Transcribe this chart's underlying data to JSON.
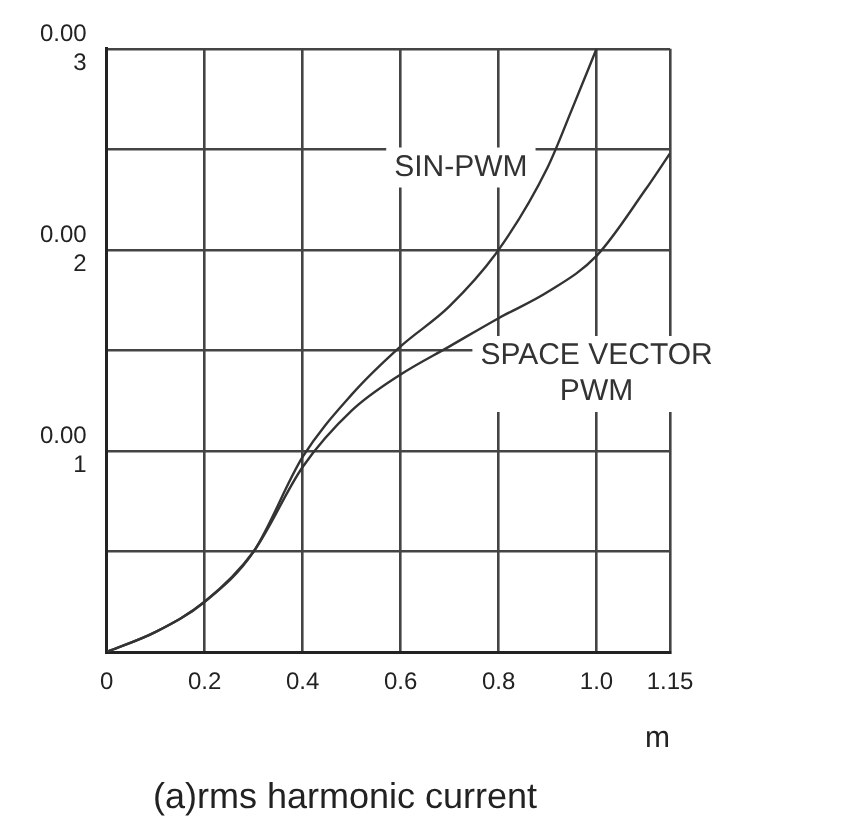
{
  "chart_data": {
    "type": "line",
    "title": "(a)rms harmonic current",
    "xlabel": "m",
    "xlim": [
      0,
      1.15
    ],
    "xticks": [
      0,
      0.2,
      0.4,
      0.6,
      0.8,
      {
        "value": 1,
        "label": "1.0"
      },
      1.15
    ],
    "ylim": [
      0,
      0.003
    ],
    "yticks": [
      {
        "value": 0.0005,
        "label": null
      },
      0.001,
      {
        "value": 0.0015,
        "label": null
      },
      0.002,
      {
        "value": 0.0025,
        "label": null
      },
      0.003
    ],
    "grid": true,
    "legend": false,
    "marker": "none",
    "line_style": "solid",
    "series": [
      {
        "name": "SIN-PWM",
        "color": "#333333",
        "x": [
          0,
          0.1,
          0.2,
          0.3,
          0.4,
          0.5,
          0.6,
          0.7,
          0.8,
          0.9,
          0.95,
          1.0
        ],
        "values": [
          0,
          0.0001,
          0.00025,
          0.0005,
          0.00097,
          0.00128,
          0.00152,
          0.00172,
          0.002,
          0.00241,
          0.0027,
          0.003
        ]
      },
      {
        "name": "SPACE VECTOR PWM",
        "color": "#333333",
        "x": [
          0,
          0.1,
          0.2,
          0.3,
          0.4,
          0.5,
          0.6,
          0.7,
          0.8,
          0.9,
          1.0,
          1.1,
          1.15
        ],
        "values": [
          0,
          0.0001,
          0.00025,
          0.0005,
          0.00092,
          0.0012,
          0.00138,
          0.00152,
          0.00166,
          0.00179,
          0.00197,
          0.0023,
          0.00248
        ]
      }
    ]
  }
}
